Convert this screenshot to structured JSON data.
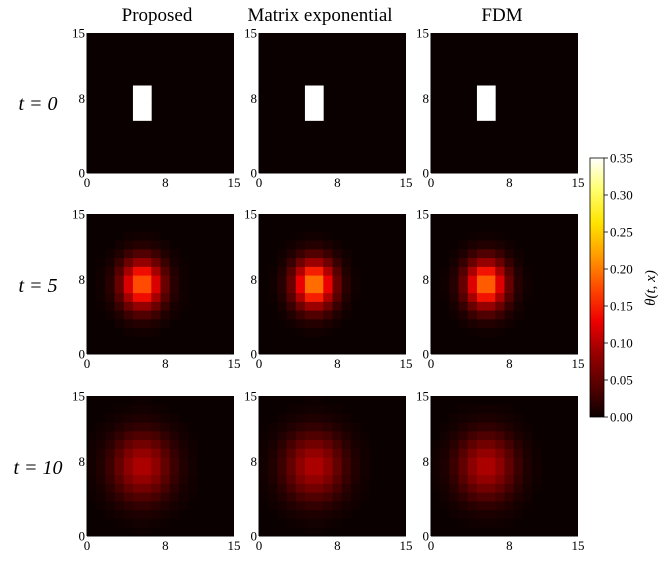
{
  "chart_data": {
    "type": "heatmap",
    "layout": "3x3 grid of heatmaps",
    "columns": [
      "Proposed",
      "Matrix exponential",
      "FDM"
    ],
    "rows": [
      {
        "label": "t = 0",
        "t": 0
      },
      {
        "label": "t = 5",
        "t": 5
      },
      {
        "label": "t = 10",
        "t": 10
      }
    ],
    "grid_size": 16,
    "axes": {
      "x_range": [
        0,
        15
      ],
      "y_range": [
        0,
        15
      ],
      "x_ticks": [
        "0",
        "8",
        "15"
      ],
      "y_ticks": [
        "0",
        "8",
        "15"
      ]
    },
    "colorbar": {
      "label": "θ(t, x)",
      "range": [
        0.0,
        0.35
      ],
      "colormap": "hot",
      "ticks": [
        "0.00",
        "0.05",
        "0.10",
        "0.15",
        "0.20",
        "0.25",
        "0.30",
        "0.35"
      ]
    },
    "panels": [
      {
        "row": 0,
        "col": 0,
        "kind": "initial",
        "x_range": [
          5,
          6
        ],
        "y_range": [
          6,
          9
        ],
        "value": 0.35
      },
      {
        "row": 0,
        "col": 1,
        "kind": "initial",
        "x_range": [
          5,
          6
        ],
        "y_range": [
          6,
          9
        ],
        "value": 0.35
      },
      {
        "row": 0,
        "col": 2,
        "kind": "initial",
        "x_range": [
          5,
          6
        ],
        "y_range": [
          6,
          9
        ],
        "value": 0.35
      },
      {
        "row": 1,
        "col": 0,
        "kind": "blob",
        "center": [
          5.5,
          7.5
        ],
        "peak": 0.19,
        "sx": 1.6,
        "sy": 2.0
      },
      {
        "row": 1,
        "col": 1,
        "kind": "blob",
        "center": [
          5.5,
          7.5
        ],
        "peak": 0.21,
        "sx": 1.55,
        "sy": 1.95
      },
      {
        "row": 1,
        "col": 2,
        "kind": "blob",
        "center": [
          5.5,
          7.5
        ],
        "peak": 0.2,
        "sx": 1.55,
        "sy": 1.95
      },
      {
        "row": 2,
        "col": 0,
        "kind": "blob",
        "center": [
          5.5,
          7.5
        ],
        "peak": 0.1,
        "sx": 2.2,
        "sy": 2.6
      },
      {
        "row": 2,
        "col": 1,
        "kind": "blob",
        "center": [
          5.5,
          7.5
        ],
        "peak": 0.1,
        "sx": 2.2,
        "sy": 2.6
      },
      {
        "row": 2,
        "col": 2,
        "kind": "blob",
        "center": [
          5.5,
          7.5
        ],
        "peak": 0.1,
        "sx": 2.15,
        "sy": 2.55
      }
    ]
  }
}
